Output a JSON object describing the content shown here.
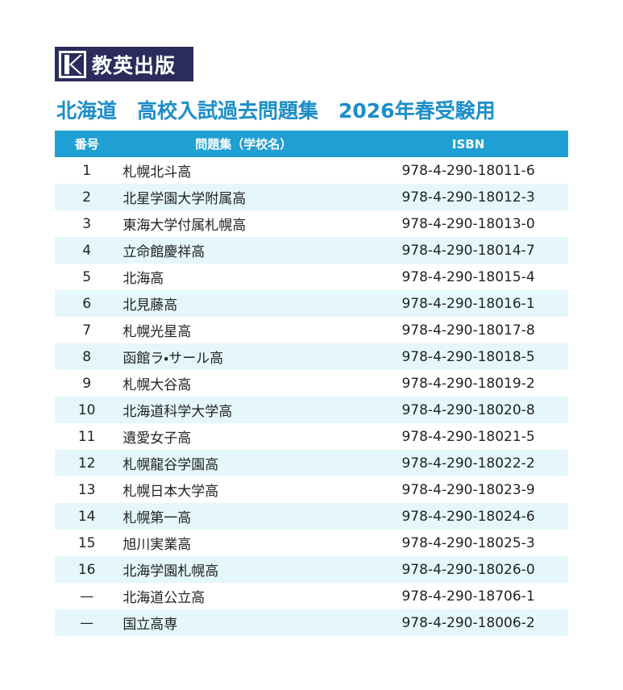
{
  "header": {
    "logo": "教英出版",
    "title": "北海道　高校入試過去問題集　2026年春受験用"
  },
  "table": {
    "columns": [
      "番号",
      "問題集（学校名）",
      "ISBN"
    ],
    "rows": [
      [
        "1",
        "札幌北斗高",
        "978-4-290-18011-6"
      ],
      [
        "2",
        "北星学園大学附属高",
        "978-4-290-18012-3"
      ],
      [
        "3",
        "東海大学付属札幌高",
        "978-4-290-18013-0"
      ],
      [
        "4",
        "立命館慶祥高",
        "978-4-290-18014-7"
      ],
      [
        "5",
        "北海高",
        "978-4-290-18015-4"
      ],
      [
        "6",
        "北見藤高",
        "978-4-290-18016-1"
      ],
      [
        "7",
        "札幌光星高",
        "978-4-290-18017-8"
      ],
      [
        "8",
        "函館ラ・サール高",
        "978-4-290-18018-5"
      ],
      [
        "9",
        "札幌大谷高",
        "978-4-290-18019-2"
      ],
      [
        "10",
        "北海道科学大学高",
        "978-4-290-18020-8"
      ],
      [
        "11",
        "遺愛女子高",
        "978-4-290-18021-5"
      ],
      [
        "12",
        "札幌龍谷学園高",
        "978-4-290-18022-2"
      ],
      [
        "13",
        "札幌日本大学高",
        "978-4-290-18023-9"
      ],
      [
        "14",
        "札幌第一高",
        "978-4-290-18024-6"
      ],
      [
        "15",
        "旭川実業高",
        "978-4-290-18025-3"
      ],
      [
        "16",
        "北海学園札幌高",
        "978-4-290-18026-0"
      ],
      [
        "—",
        "北海道公立高",
        "978-4-290-18706-1"
      ],
      [
        "—",
        "国立高専",
        "978-4-290-18006-2"
      ]
    ]
  }
}
